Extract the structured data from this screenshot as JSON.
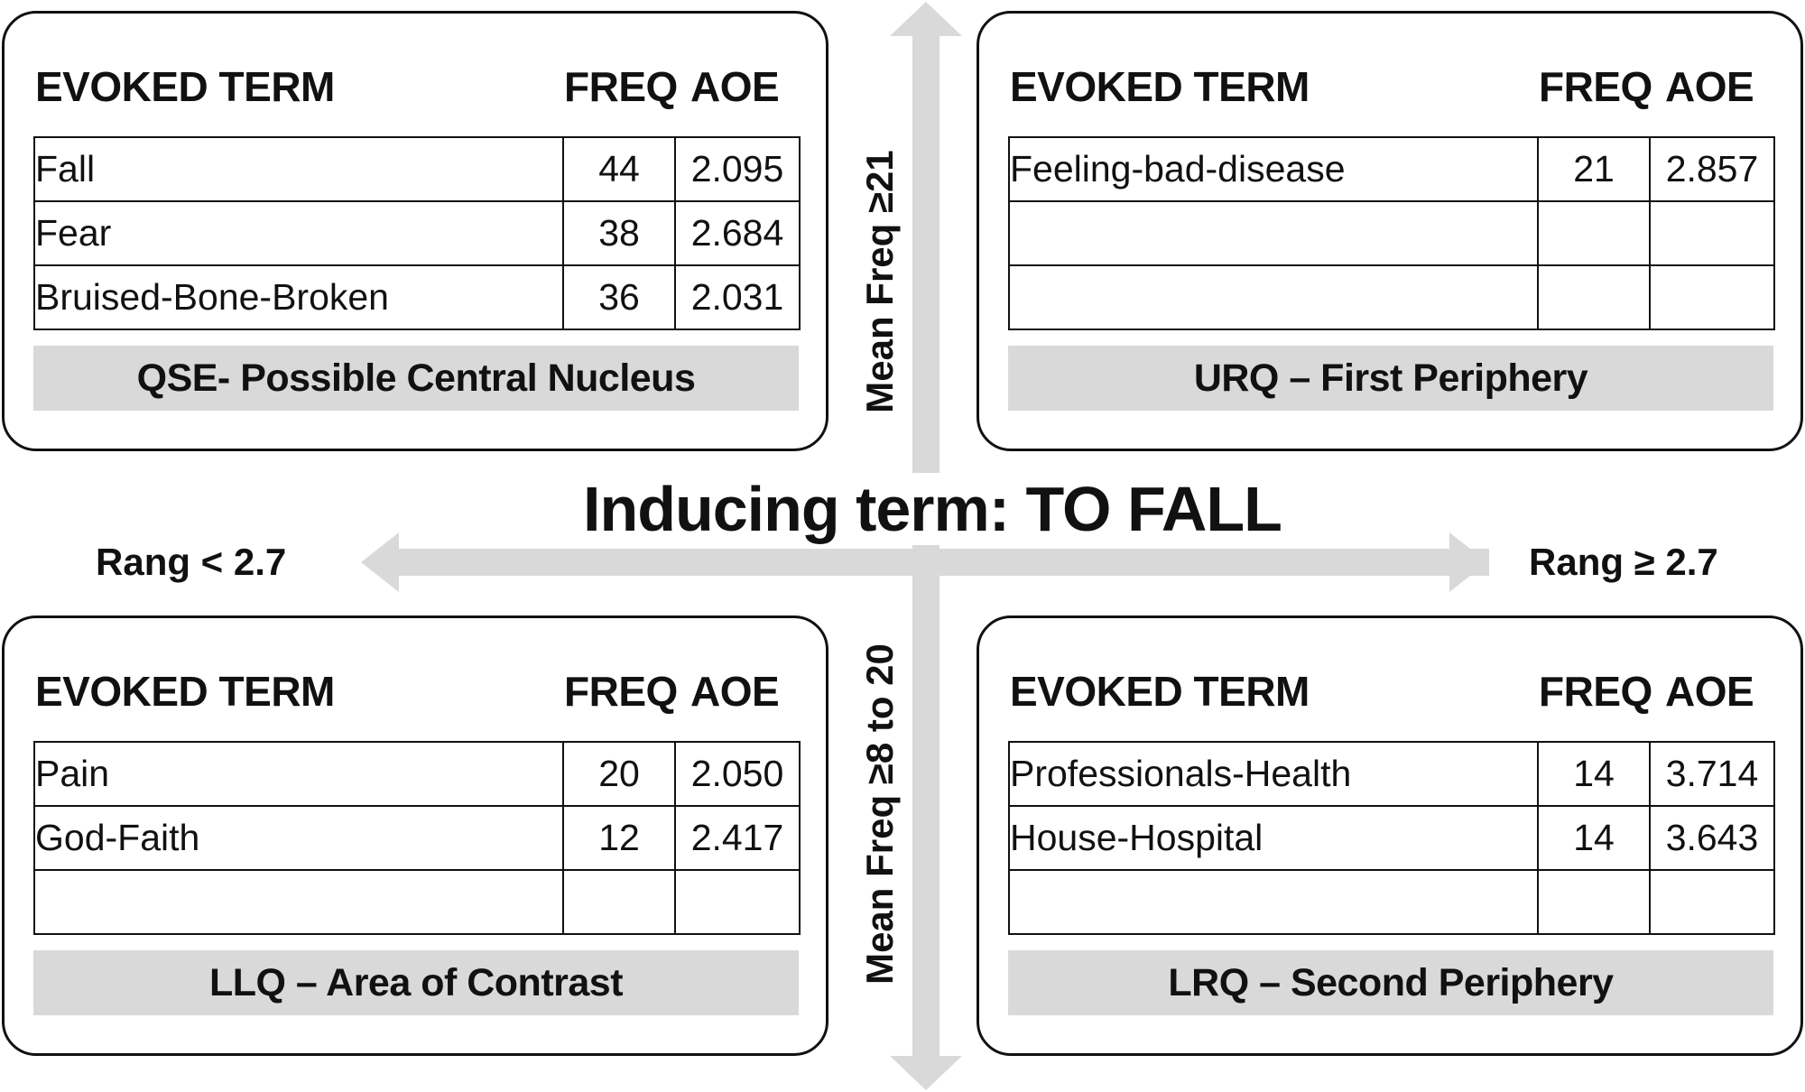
{
  "colors": {
    "arrow": "#d9d9d9",
    "label_bar": "#d9d9d9",
    "border": "#111111"
  },
  "center_title": "Inducing term: TO FALL",
  "axis_labels": {
    "left": "Rang  < 2.7",
    "right": "Rang ≥ 2.7",
    "top": "Mean Freq ≥21",
    "bottom": "Mean Freq ≥8 to 20"
  },
  "column_headers": {
    "term": "EVOKED TERM",
    "freq": "FREQ",
    "aoe": "AOE"
  },
  "quadrants": {
    "top_left": {
      "label": "QSE- Possible Central Nucleus",
      "rows": [
        {
          "term": "Fall",
          "freq": "44",
          "aoe": "2.095"
        },
        {
          "term": "Fear",
          "freq": "38",
          "aoe": "2.684"
        },
        {
          "term": "Bruised-Bone-Broken",
          "freq": "36",
          "aoe": "2.031"
        }
      ]
    },
    "top_right": {
      "label": "URQ – First Periphery",
      "rows": [
        {
          "term": "Feeling-bad-disease",
          "freq": "21",
          "aoe": "2.857"
        },
        {
          "term": "",
          "freq": "",
          "aoe": ""
        },
        {
          "term": "",
          "freq": "",
          "aoe": ""
        }
      ]
    },
    "bottom_left": {
      "label": "LLQ – Area of Contrast",
      "rows": [
        {
          "term": "Pain",
          "freq": "20",
          "aoe": "2.050"
        },
        {
          "term": "God-Faith",
          "freq": "12",
          "aoe": "2.417"
        },
        {
          "term": "",
          "freq": "",
          "aoe": ""
        }
      ]
    },
    "bottom_right": {
      "label": "LRQ – Second Periphery",
      "rows": [
        {
          "term": "Professionals-Health",
          "freq": "14",
          "aoe": "3.714"
        },
        {
          "term": "House-Hospital",
          "freq": "14",
          "aoe": "3.643"
        },
        {
          "term": "",
          "freq": "",
          "aoe": ""
        }
      ]
    }
  }
}
